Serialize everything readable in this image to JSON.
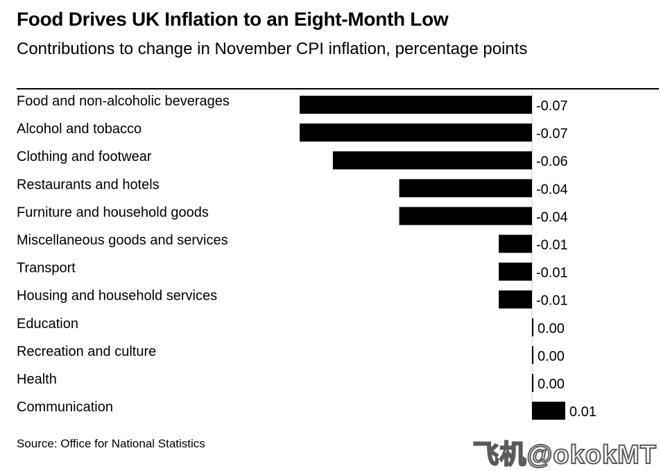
{
  "chart_data": {
    "type": "bar",
    "orientation": "horizontal",
    "title": "Food Drives UK Inflation to an Eight-Month Low",
    "subtitle": "Contributions to change in November CPI inflation, percentage points",
    "categories": [
      "Food and non-alcoholic beverages",
      "Alcohol and tobacco",
      "Clothing and footwear",
      "Restaurants and hotels",
      "Furniture and household goods",
      "Miscellaneous goods and services",
      "Transport",
      "Housing and household services",
      "Education",
      "Recreation and culture",
      "Health",
      "Communication"
    ],
    "values": [
      -0.07,
      -0.07,
      -0.06,
      -0.04,
      -0.04,
      -0.01,
      -0.01,
      -0.01,
      0.0,
      0.0,
      0.0,
      0.01
    ],
    "value_labels": [
      "-0.07",
      "-0.07",
      "-0.06",
      "-0.04",
      "-0.04",
      "-0.01",
      "-0.01",
      "-0.01",
      "0.00",
      "0.00",
      "0.00",
      "0.01"
    ],
    "xlim": [
      -0.07,
      0.01
    ],
    "xlabel": "",
    "ylabel": "",
    "bar_color": "#000000",
    "source": "Source: Office for National Statistics"
  },
  "watermark": "飞机@okokMT"
}
